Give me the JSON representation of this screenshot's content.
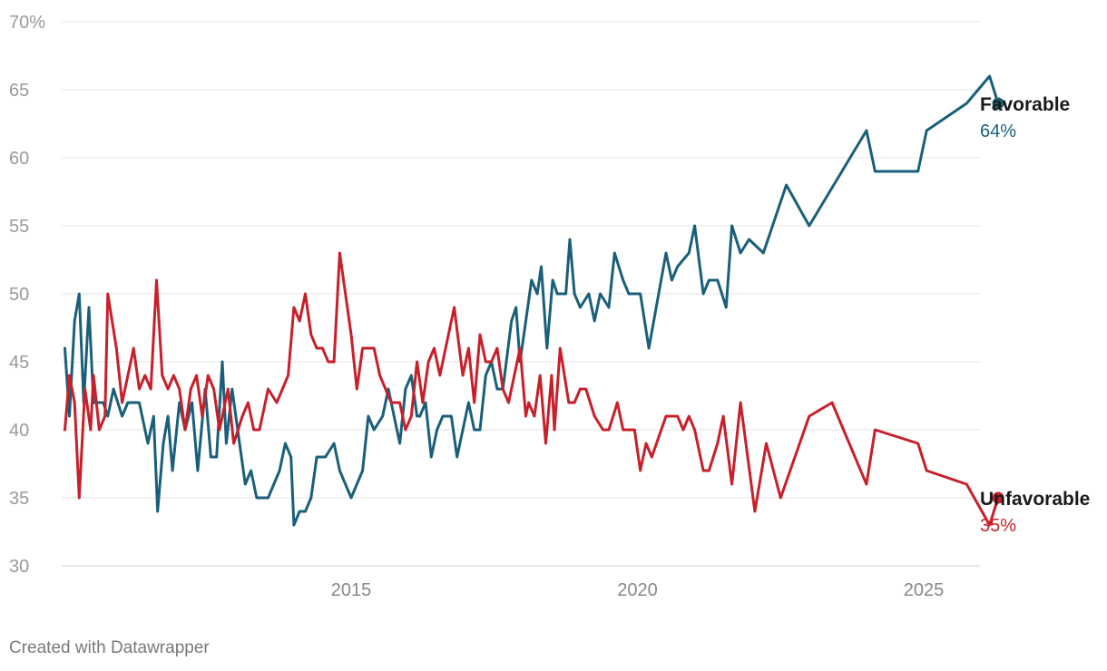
{
  "chart_data": {
    "type": "line",
    "title": "",
    "xlabel": "",
    "ylabel": "",
    "ylim": [
      30,
      70
    ],
    "xlim": [
      2010.0,
      2026.0
    ],
    "y_ticks": [
      30,
      35,
      40,
      45,
      50,
      55,
      60,
      65,
      70
    ],
    "y_tick_labels": [
      "30",
      "35",
      "40",
      "45",
      "50",
      "55",
      "60",
      "65",
      "70%"
    ],
    "x_ticks": [
      2015,
      2020,
      2025
    ],
    "x_tick_labels": [
      "2015",
      "2020",
      "2025"
    ],
    "grid": "horizontal",
    "series": [
      {
        "name": "Favorable",
        "end_label": "Favorable",
        "end_value_label": "64%",
        "color": "#1a5f7a",
        "points": [
          [
            2010.0,
            46
          ],
          [
            2010.08,
            41
          ],
          [
            2010.17,
            48
          ],
          [
            2010.25,
            50
          ],
          [
            2010.33,
            42
          ],
          [
            2010.42,
            49
          ],
          [
            2010.5,
            42
          ],
          [
            2010.67,
            42
          ],
          [
            2010.75,
            41
          ],
          [
            2010.85,
            43
          ],
          [
            2011.0,
            41
          ],
          [
            2011.1,
            42
          ],
          [
            2011.3,
            42
          ],
          [
            2011.45,
            39
          ],
          [
            2011.55,
            41
          ],
          [
            2011.62,
            34
          ],
          [
            2011.72,
            39
          ],
          [
            2011.8,
            41
          ],
          [
            2011.88,
            37
          ],
          [
            2012.0,
            42
          ],
          [
            2012.1,
            40
          ],
          [
            2012.22,
            42
          ],
          [
            2012.32,
            37
          ],
          [
            2012.45,
            43
          ],
          [
            2012.55,
            38
          ],
          [
            2012.65,
            38
          ],
          [
            2012.75,
            45
          ],
          [
            2012.82,
            39
          ],
          [
            2012.92,
            43
          ],
          [
            2013.05,
            39
          ],
          [
            2013.15,
            36
          ],
          [
            2013.25,
            37
          ],
          [
            2013.35,
            35
          ],
          [
            2013.55,
            35
          ],
          [
            2013.75,
            37
          ],
          [
            2013.85,
            39
          ],
          [
            2013.95,
            38
          ],
          [
            2014.0,
            33
          ],
          [
            2014.1,
            34
          ],
          [
            2014.2,
            34
          ],
          [
            2014.3,
            35
          ],
          [
            2014.4,
            38
          ],
          [
            2014.55,
            38
          ],
          [
            2014.7,
            39
          ],
          [
            2014.8,
            37
          ],
          [
            2015.0,
            35
          ],
          [
            2015.2,
            37
          ],
          [
            2015.3,
            41
          ],
          [
            2015.4,
            40
          ],
          [
            2015.55,
            41
          ],
          [
            2015.65,
            43
          ],
          [
            2015.75,
            41
          ],
          [
            2015.85,
            39
          ],
          [
            2015.95,
            43
          ],
          [
            2016.05,
            44
          ],
          [
            2016.15,
            41
          ],
          [
            2016.2,
            41
          ],
          [
            2016.3,
            42
          ],
          [
            2016.4,
            38
          ],
          [
            2016.5,
            40
          ],
          [
            2016.6,
            41
          ],
          [
            2016.75,
            41
          ],
          [
            2016.85,
            38
          ],
          [
            2017.05,
            42
          ],
          [
            2017.15,
            40
          ],
          [
            2017.25,
            40
          ],
          [
            2017.35,
            44
          ],
          [
            2017.45,
            45
          ],
          [
            2017.55,
            43
          ],
          [
            2017.65,
            43
          ],
          [
            2017.8,
            48
          ],
          [
            2017.88,
            49
          ],
          [
            2017.95,
            45
          ],
          [
            2018.05,
            48
          ],
          [
            2018.15,
            51
          ],
          [
            2018.25,
            50
          ],
          [
            2018.32,
            52
          ],
          [
            2018.42,
            46
          ],
          [
            2018.52,
            51
          ],
          [
            2018.6,
            50
          ],
          [
            2018.75,
            50
          ],
          [
            2018.82,
            54
          ],
          [
            2018.9,
            50
          ],
          [
            2019.0,
            49
          ],
          [
            2019.15,
            50
          ],
          [
            2019.25,
            48
          ],
          [
            2019.35,
            50
          ],
          [
            2019.5,
            49
          ],
          [
            2019.6,
            53
          ],
          [
            2019.75,
            51
          ],
          [
            2019.85,
            50
          ],
          [
            2020.05,
            50
          ],
          [
            2020.2,
            46
          ],
          [
            2020.5,
            53
          ],
          [
            2020.6,
            51
          ],
          [
            2020.7,
            52
          ],
          [
            2020.9,
            53
          ],
          [
            2021.0,
            55
          ],
          [
            2021.15,
            50
          ],
          [
            2021.25,
            51
          ],
          [
            2021.4,
            51
          ],
          [
            2021.55,
            49
          ],
          [
            2021.65,
            55
          ],
          [
            2021.8,
            53
          ],
          [
            2021.95,
            54
          ],
          [
            2022.2,
            53
          ],
          [
            2022.6,
            58
          ],
          [
            2023.0,
            55
          ],
          [
            2024.0,
            62
          ],
          [
            2024.15,
            59
          ],
          [
            2024.9,
            59
          ],
          [
            2025.05,
            62
          ],
          [
            2025.75,
            64
          ],
          [
            2026.15,
            66
          ],
          [
            2026.3,
            64
          ]
        ]
      },
      {
        "name": "Unfavorable",
        "end_label": "Unfavorable",
        "end_value_label": "35%",
        "color": "#c8202a",
        "points": [
          [
            2010.0,
            40
          ],
          [
            2010.08,
            44
          ],
          [
            2010.17,
            42
          ],
          [
            2010.25,
            35
          ],
          [
            2010.35,
            43
          ],
          [
            2010.45,
            40
          ],
          [
            2010.5,
            44
          ],
          [
            2010.6,
            40
          ],
          [
            2010.7,
            41
          ],
          [
            2010.75,
            50
          ],
          [
            2010.9,
            46
          ],
          [
            2011.0,
            42
          ],
          [
            2011.15,
            45
          ],
          [
            2011.2,
            46
          ],
          [
            2011.3,
            43
          ],
          [
            2011.4,
            44
          ],
          [
            2011.5,
            43
          ],
          [
            2011.6,
            51
          ],
          [
            2011.7,
            44
          ],
          [
            2011.8,
            43
          ],
          [
            2011.9,
            44
          ],
          [
            2012.0,
            43
          ],
          [
            2012.1,
            40
          ],
          [
            2012.2,
            43
          ],
          [
            2012.3,
            44
          ],
          [
            2012.4,
            41
          ],
          [
            2012.5,
            44
          ],
          [
            2012.6,
            43
          ],
          [
            2012.7,
            40
          ],
          [
            2012.85,
            43
          ],
          [
            2012.95,
            39
          ],
          [
            2013.1,
            41
          ],
          [
            2013.2,
            42
          ],
          [
            2013.3,
            40
          ],
          [
            2013.4,
            40
          ],
          [
            2013.55,
            43
          ],
          [
            2013.7,
            42
          ],
          [
            2013.9,
            44
          ],
          [
            2014.0,
            49
          ],
          [
            2014.1,
            48
          ],
          [
            2014.2,
            50
          ],
          [
            2014.3,
            47
          ],
          [
            2014.4,
            46
          ],
          [
            2014.5,
            46
          ],
          [
            2014.6,
            45
          ],
          [
            2014.7,
            45
          ],
          [
            2014.8,
            53
          ],
          [
            2015.0,
            47
          ],
          [
            2015.1,
            43
          ],
          [
            2015.2,
            46
          ],
          [
            2015.4,
            46
          ],
          [
            2015.5,
            44
          ],
          [
            2015.7,
            42
          ],
          [
            2015.85,
            42
          ],
          [
            2015.95,
            40
          ],
          [
            2016.05,
            41
          ],
          [
            2016.15,
            45
          ],
          [
            2016.25,
            42
          ],
          [
            2016.35,
            45
          ],
          [
            2016.45,
            46
          ],
          [
            2016.55,
            44
          ],
          [
            2016.65,
            46
          ],
          [
            2016.8,
            49
          ],
          [
            2016.95,
            44
          ],
          [
            2017.05,
            46
          ],
          [
            2017.15,
            42
          ],
          [
            2017.25,
            47
          ],
          [
            2017.35,
            45
          ],
          [
            2017.45,
            45
          ],
          [
            2017.55,
            46
          ],
          [
            2017.65,
            43
          ],
          [
            2017.75,
            42
          ],
          [
            2017.95,
            46
          ],
          [
            2018.05,
            41
          ],
          [
            2018.1,
            42
          ],
          [
            2018.2,
            41
          ],
          [
            2018.3,
            44
          ],
          [
            2018.4,
            39
          ],
          [
            2018.5,
            44
          ],
          [
            2018.55,
            40
          ],
          [
            2018.65,
            46
          ],
          [
            2018.8,
            42
          ],
          [
            2018.9,
            42
          ],
          [
            2019.0,
            43
          ],
          [
            2019.1,
            43
          ],
          [
            2019.25,
            41
          ],
          [
            2019.4,
            40
          ],
          [
            2019.5,
            40
          ],
          [
            2019.65,
            42
          ],
          [
            2019.75,
            40
          ],
          [
            2019.85,
            40
          ],
          [
            2019.95,
            40
          ],
          [
            2020.05,
            37
          ],
          [
            2020.15,
            39
          ],
          [
            2020.25,
            38
          ],
          [
            2020.5,
            41
          ],
          [
            2020.7,
            41
          ],
          [
            2020.8,
            40
          ],
          [
            2020.9,
            41
          ],
          [
            2021.0,
            40
          ],
          [
            2021.15,
            37
          ],
          [
            2021.25,
            37
          ],
          [
            2021.4,
            39
          ],
          [
            2021.5,
            41
          ],
          [
            2021.65,
            36
          ],
          [
            2021.8,
            42
          ],
          [
            2022.05,
            34
          ],
          [
            2022.25,
            39
          ],
          [
            2022.5,
            35
          ],
          [
            2023.0,
            41
          ],
          [
            2023.4,
            42
          ],
          [
            2024.0,
            36
          ],
          [
            2024.15,
            40
          ],
          [
            2024.9,
            39
          ],
          [
            2025.05,
            37
          ],
          [
            2025.75,
            36
          ],
          [
            2026.15,
            33
          ],
          [
            2026.3,
            35
          ]
        ]
      }
    ]
  },
  "footer": {
    "credit": "Created with Datawrapper"
  }
}
